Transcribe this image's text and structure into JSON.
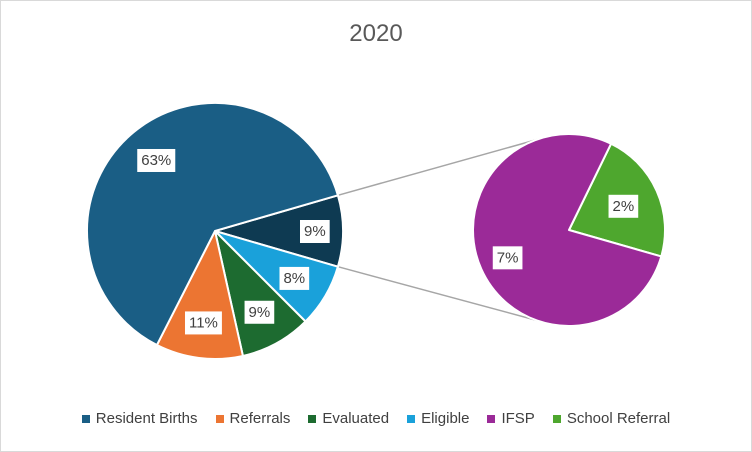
{
  "chart_data": {
    "type": "pie",
    "subtype": "pie-of-pie",
    "title": "2020",
    "legend_position": "bottom",
    "series": [
      {
        "name": "Resident Births",
        "value": 63,
        "label": "63%",
        "color": "#1a5e85",
        "group": "primary"
      },
      {
        "name": "Referrals",
        "value": 11,
        "label": "11%",
        "color": "#ec7532",
        "group": "primary"
      },
      {
        "name": "Evaluated",
        "value": 9,
        "label": "9%",
        "color": "#1d6b30",
        "group": "primary"
      },
      {
        "name": "Eligible",
        "value": 8,
        "label": "8%",
        "color": "#1aa1da",
        "group": "primary"
      },
      {
        "name": "IFSP",
        "value": 7,
        "label": "7%",
        "color": "#9b2a98",
        "group": "secondary"
      },
      {
        "name": "School Referral",
        "value": 2,
        "label": "2%",
        "color": "#4ea72e",
        "group": "secondary"
      }
    ],
    "other_slice": {
      "value": 9,
      "label": "9%",
      "color": "#0e3a52"
    }
  }
}
